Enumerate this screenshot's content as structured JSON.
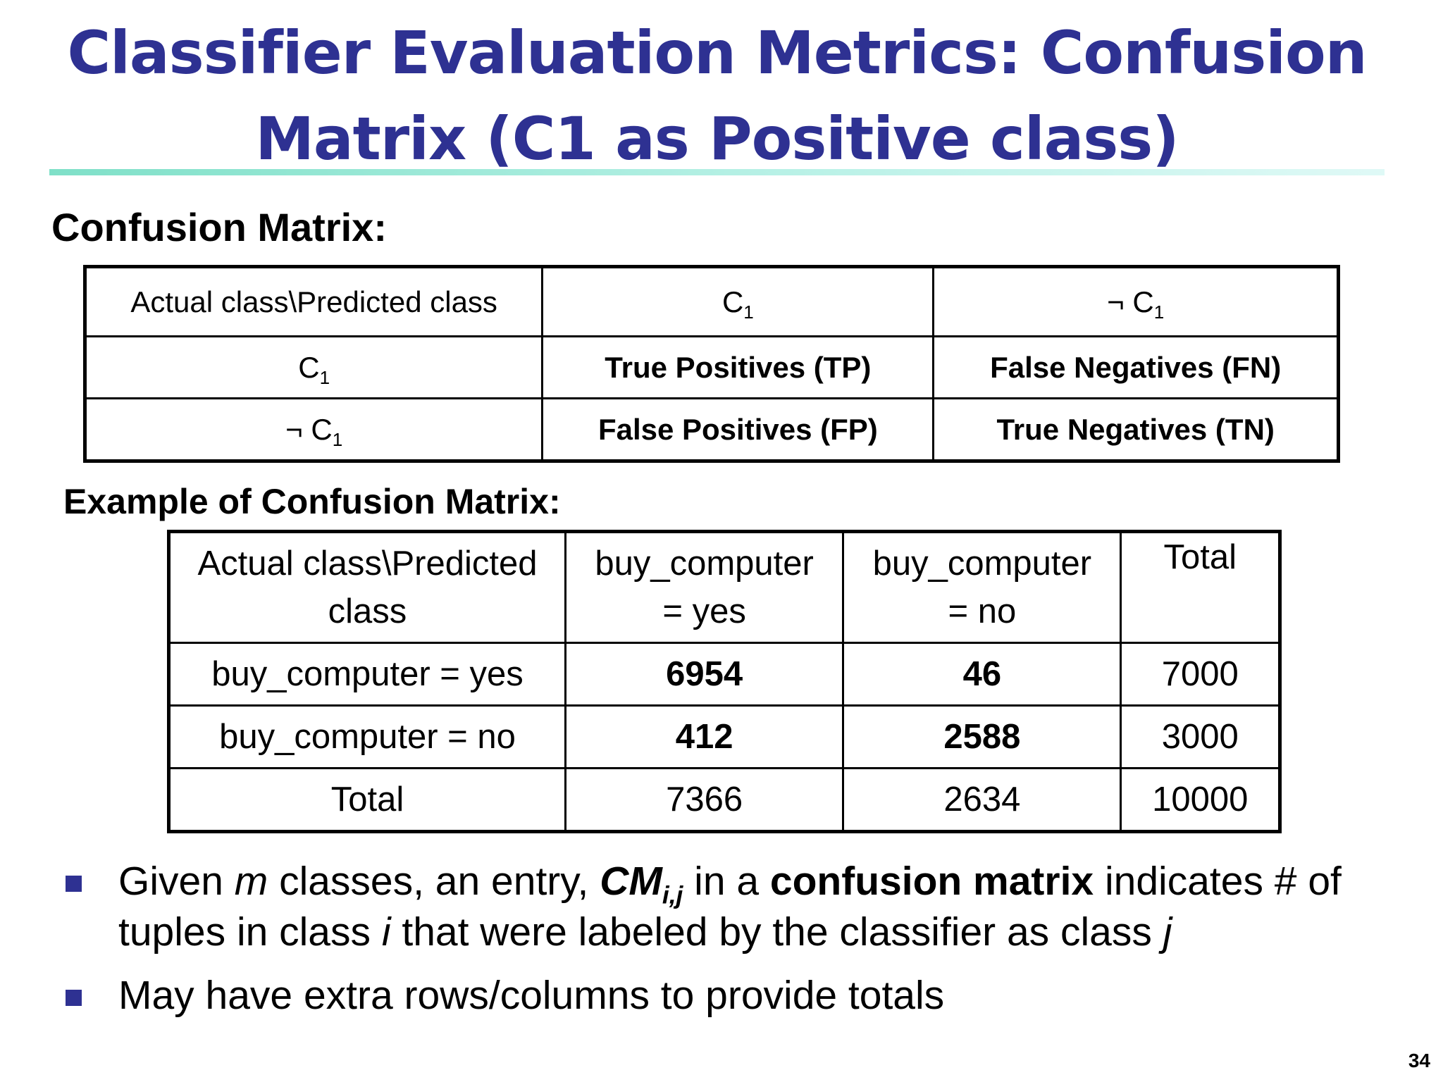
{
  "slide": {
    "title": "Classifier Evaluation Metrics: Confusion Matrix (C1 as Positive class)",
    "page_number": "34"
  },
  "confusion_matrix": {
    "heading": "Confusion Matrix:",
    "header": {
      "corner": "Actual class\\Predicted class",
      "col1_base": "C",
      "col1_sub": "1",
      "col2_base": "¬ C",
      "col2_sub": "1"
    },
    "rows": [
      {
        "label_base": "C",
        "label_sub": "1",
        "cells": [
          "True Positives (TP)",
          "False Negatives (FN)"
        ]
      },
      {
        "label_base": "¬ C",
        "label_sub": "1",
        "cells": [
          "False Positives (FP)",
          "True Negatives (TN)"
        ]
      }
    ]
  },
  "example": {
    "heading": "Example of Confusion Matrix:",
    "header": {
      "corner_line1": "Actual class\\Predicted",
      "corner_line2": "class",
      "col1_line1": "buy_computer",
      "col1_line2": "=  yes",
      "col2_line1": "buy_computer",
      "col2_line2": "= no",
      "col3": "Total"
    },
    "rows": [
      {
        "label": "buy_computer = yes",
        "values": [
          "6954",
          "46",
          "7000"
        ]
      },
      {
        "label": "buy_computer = no",
        "values": [
          "412",
          "2588",
          "3000"
        ]
      },
      {
        "label": "Total",
        "values": [
          "7366",
          "2634",
          "10000"
        ]
      }
    ]
  },
  "bullets": {
    "b1": {
      "t1": "Given ",
      "m": "m",
      "t2": " classes, an entry, ",
      "cm": "CM",
      "cm_sub": "i,j",
      "t3": "  in a ",
      "bold": "confusion matrix",
      "t4": " indicates # of tuples in class ",
      "i": "i",
      "t5": "  that were labeled by the classifier as class ",
      "j": "j"
    },
    "b2": "May have extra rows/columns to provide totals"
  }
}
